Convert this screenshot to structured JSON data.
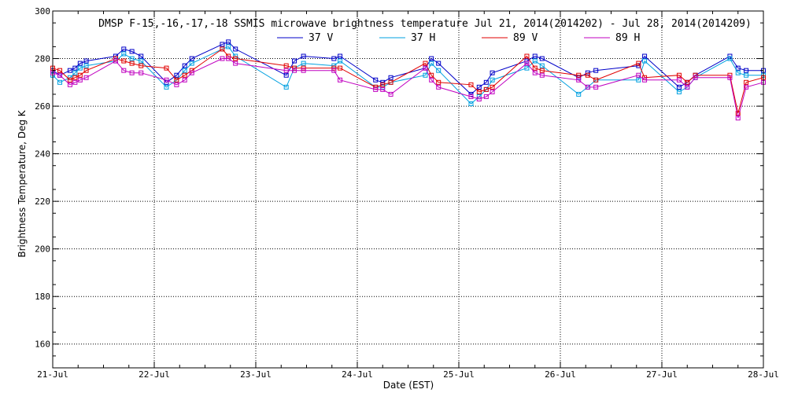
{
  "chart_data": {
    "type": "line",
    "title": "DMSP F-15,-16,-17,-18 SSMIS microwave brightness temperature Jul 21, 2014(2014202) - Jul 28, 2014(2014209)",
    "xlabel": "Date (EST)",
    "ylabel": "Brightness Temperature, Deg K",
    "xlim": [
      "21-Jul",
      "28-Jul"
    ],
    "ylim": [
      150,
      300
    ],
    "x_ticks": [
      "21-Jul",
      "22-Jul",
      "23-Jul",
      "24-Jul",
      "25-Jul",
      "26-Jul",
      "27-Jul",
      "28-Jul"
    ],
    "y_ticks": [
      160,
      180,
      200,
      220,
      240,
      260,
      280,
      300
    ],
    "grid": true,
    "legend": "top-center",
    "series": [
      {
        "name": "37 V",
        "color": "#0000c8",
        "x": [
          21.0,
          21.07,
          21.17,
          21.22,
          21.27,
          21.33,
          21.62,
          21.7,
          21.78,
          21.87,
          22.12,
          22.22,
          22.3,
          22.37,
          22.67,
          22.73,
          22.8,
          23.3,
          23.38,
          23.47,
          23.77,
          23.83,
          24.18,
          24.25,
          24.33,
          24.67,
          24.73,
          24.8,
          25.12,
          25.2,
          25.27,
          25.33,
          25.67,
          25.75,
          25.82,
          26.18,
          26.27,
          26.35,
          26.77,
          26.83,
          27.17,
          27.25,
          27.33,
          27.67,
          27.75,
          27.83,
          28.0
        ],
        "values": [
          275,
          273,
          275,
          276,
          278,
          279,
          281,
          284,
          283,
          281,
          270,
          273,
          277,
          280,
          286,
          287,
          284,
          273,
          279,
          281,
          280,
          281,
          271,
          270,
          272,
          276,
          280,
          278,
          265,
          268,
          270,
          274,
          279,
          281,
          280,
          272,
          274,
          275,
          277,
          281,
          268,
          270,
          273,
          281,
          276,
          275,
          275
        ]
      },
      {
        "name": "37 H",
        "color": "#00a0e0",
        "x": [
          21.0,
          21.07,
          21.17,
          21.22,
          21.27,
          21.33,
          21.62,
          21.7,
          21.78,
          21.87,
          22.12,
          22.22,
          22.3,
          22.37,
          22.67,
          22.73,
          22.8,
          23.3,
          23.38,
          23.47,
          23.77,
          23.83,
          24.18,
          24.25,
          24.33,
          24.67,
          24.73,
          24.8,
          25.12,
          25.2,
          25.27,
          25.33,
          25.67,
          25.75,
          25.82,
          26.18,
          26.27,
          26.35,
          26.77,
          26.83,
          27.17,
          27.25,
          27.33,
          27.67,
          27.75,
          27.83,
          28.0
        ],
        "values": [
          273,
          270,
          272,
          274,
          276,
          277,
          279,
          282,
          280,
          279,
          268,
          271,
          275,
          278,
          284,
          285,
          281,
          268,
          276,
          278,
          277,
          279,
          268,
          268,
          270,
          273,
          278,
          275,
          261,
          264,
          267,
          271,
          276,
          279,
          277,
          265,
          268,
          271,
          271,
          279,
          266,
          268,
          272,
          280,
          274,
          273,
          273
        ]
      },
      {
        "name": "89 V",
        "color": "#e00000",
        "x": [
          21.0,
          21.07,
          21.17,
          21.22,
          21.27,
          21.33,
          21.62,
          21.7,
          21.78,
          21.87,
          22.12,
          22.22,
          22.3,
          22.37,
          22.67,
          22.73,
          22.8,
          23.3,
          23.38,
          23.47,
          23.77,
          23.83,
          24.18,
          24.25,
          24.33,
          24.67,
          24.73,
          24.8,
          25.12,
          25.2,
          25.27,
          25.33,
          25.67,
          25.75,
          25.82,
          26.18,
          26.27,
          26.35,
          26.77,
          26.83,
          27.17,
          27.25,
          27.33,
          27.67,
          27.75,
          27.83,
          28.0
        ],
        "values": [
          276,
          275,
          271,
          272,
          273,
          275,
          280,
          279,
          278,
          277,
          276,
          271,
          273,
          275,
          284,
          281,
          280,
          277,
          276,
          276,
          276,
          276,
          268,
          269,
          270,
          278,
          273,
          270,
          269,
          266,
          267,
          268,
          281,
          276,
          275,
          273,
          273,
          271,
          278,
          272,
          273,
          270,
          273,
          273,
          257,
          270,
          272
        ]
      },
      {
        "name": "89 H",
        "color": "#c000c0",
        "x": [
          21.0,
          21.07,
          21.17,
          21.22,
          21.27,
          21.33,
          21.62,
          21.7,
          21.78,
          21.87,
          22.12,
          22.22,
          22.3,
          22.37,
          22.67,
          22.73,
          22.8,
          23.3,
          23.38,
          23.47,
          23.77,
          23.83,
          24.18,
          24.25,
          24.33,
          24.67,
          24.73,
          24.8,
          25.12,
          25.2,
          25.27,
          25.33,
          25.67,
          25.75,
          25.82,
          26.18,
          26.27,
          26.35,
          26.77,
          26.83,
          27.17,
          27.25,
          27.33,
          27.67,
          27.75,
          27.83,
          28.0
        ],
        "values": [
          274,
          273,
          269,
          270,
          271,
          272,
          279,
          275,
          274,
          274,
          271,
          269,
          271,
          274,
          280,
          280,
          278,
          275,
          275,
          275,
          275,
          271,
          267,
          267,
          265,
          276,
          271,
          268,
          264,
          263,
          264,
          266,
          278,
          274,
          273,
          271,
          268,
          268,
          273,
          271,
          271,
          268,
          272,
          272,
          255,
          268,
          270
        ]
      }
    ]
  }
}
